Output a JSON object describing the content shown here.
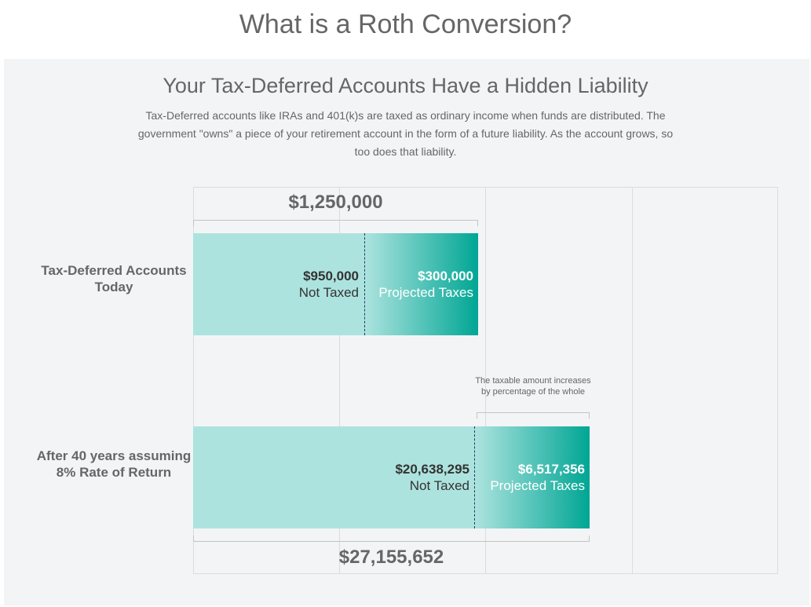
{
  "header": {
    "title": "What is a Roth Conversion?"
  },
  "section": {
    "subtitle": "Your Tax-Deferred Accounts Have a Hidden Liability",
    "description": "Tax-Deferred accounts like IRAs and 401(k)s are taxed as ordinary income when funds are distributed. The government \"owns\" a piece of your retirement account in the form of a future liability. As the account grows, so too does that liability."
  },
  "chart_data": {
    "type": "bar",
    "orientation": "horizontal",
    "stacked": true,
    "categories": [
      "Tax-Deferred Accounts Today",
      "After 40 years assuming 8% Rate of Return"
    ],
    "series": [
      {
        "name": "Not Taxed",
        "values": [
          950000,
          20638295
        ],
        "labels": [
          "$950,000",
          "$20,638,295"
        ],
        "color": "#ade3df"
      },
      {
        "name": "Projected Taxes",
        "values": [
          300000,
          6517356
        ],
        "labels": [
          "$300,000",
          "$6,517,356"
        ],
        "color": "#00a694"
      }
    ],
    "totals": [
      "$1,250,000",
      "$27,155,652"
    ],
    "annotation": "The taxable amount increases by percentage of the whole",
    "grid": true
  }
}
